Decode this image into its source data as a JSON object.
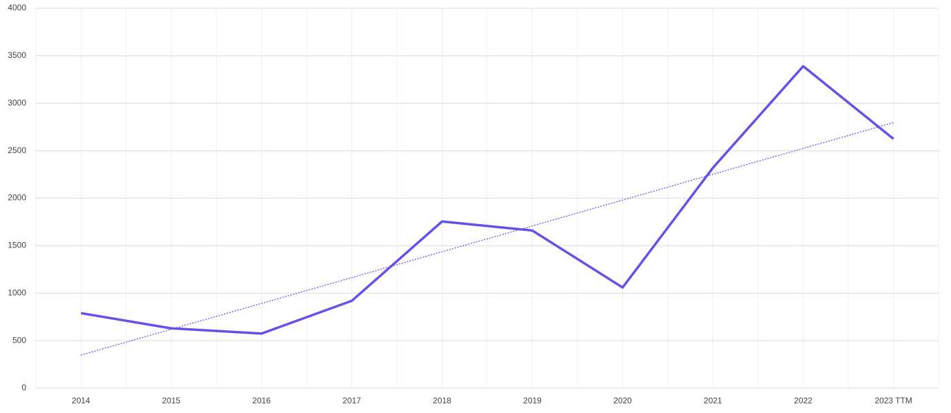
{
  "chart_data": {
    "type": "line",
    "categories": [
      "2014",
      "2015",
      "2016",
      "2017",
      "2018",
      "2019",
      "2020",
      "2021",
      "2022",
      "2023 TTM"
    ],
    "values": [
      790,
      630,
      575,
      920,
      1755,
      1660,
      1060,
      2320,
      3390,
      2625
    ],
    "color": "#6352e8",
    "trendline": true,
    "ylim": [
      0,
      4000
    ],
    "yticks": [
      0,
      500,
      1000,
      1500,
      2000,
      2500,
      3000,
      3500,
      4000
    ],
    "grid": true
  }
}
